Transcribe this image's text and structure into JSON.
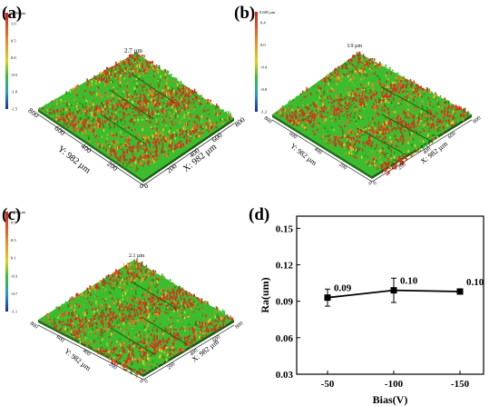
{
  "panels": {
    "a": {
      "label": "(a)",
      "scale_top": "1.199 µm",
      "scale_ticks": [
        "1.0",
        "0.5",
        "0.0",
        "-0.5",
        "-1.0",
        "-1.5"
      ],
      "peak_label": "2.7 µm",
      "y_axis_label": "Y: 982 µm",
      "x_axis_label": "X: 982 µm",
      "y_ticks": [
        "800",
        "600",
        "400",
        "200",
        "0"
      ],
      "x_ticks": [
        "0",
        "200",
        "400",
        "600",
        "800"
      ]
    },
    "b": {
      "label": "(b)",
      "scale_top": "0.685 µm",
      "scale_ticks": [
        "0.4",
        "0.0",
        "-0.4",
        "-0.8",
        "-1.2"
      ],
      "peak_label": "3.9 µm",
      "y_axis_label": "Y: 982 µm",
      "x_axis_label": "X: 982 µm",
      "y_ticks": [
        "800",
        "600",
        "400",
        "200",
        "0"
      ],
      "x_ticks": [
        "0",
        "200",
        "400",
        "600",
        "800"
      ]
    },
    "c": {
      "label": "(c)",
      "scale_top": "1.000 µm",
      "scale_ticks": [
        "0.9",
        "0.5",
        "0.1",
        "-0.3",
        "-0.7",
        "-1.1"
      ],
      "peak_label": "2.1 µm",
      "y_axis_label": "Y: 982 µm",
      "x_axis_label": "X: 982 µm",
      "y_ticks": [
        "800",
        "600",
        "400",
        "200",
        "0"
      ],
      "x_ticks": [
        "0",
        "200",
        "400",
        "600",
        "800"
      ]
    },
    "d": {
      "label": "(d)"
    }
  },
  "colors": {
    "green": "#3cbd2e",
    "dark_green": "#238a1c",
    "red": "#d6301e",
    "orange": "#e8901e",
    "yellow": "#e6d22c"
  },
  "chart_data": {
    "type": "line",
    "title": "",
    "xlabel": "Bias(V)",
    "ylabel": "Ra(um)",
    "categories": [
      "-50",
      "-100",
      "-150"
    ],
    "series": [
      {
        "values": [
          0.093,
          0.099,
          0.098
        ],
        "errors": [
          0.007,
          0.01,
          0.002
        ]
      }
    ],
    "data_labels": [
      "0.09",
      "0.10",
      "0.10"
    ],
    "yticks": [
      "0.03",
      "0.06",
      "0.09",
      "0.12",
      "0.15"
    ],
    "ylim": [
      0.03,
      0.16
    ],
    "grid": false,
    "marker": "square"
  }
}
